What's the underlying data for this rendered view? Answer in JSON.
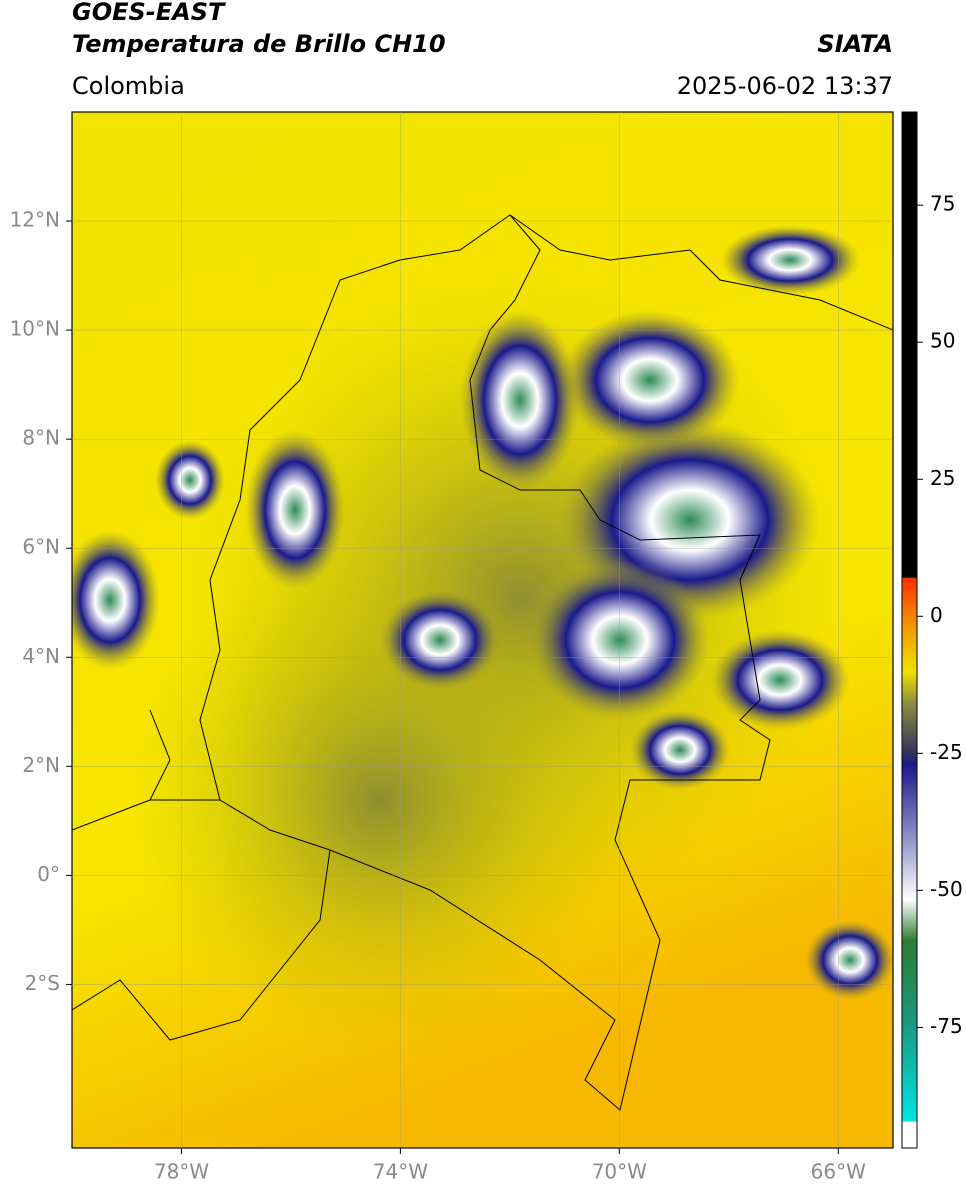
{
  "header": {
    "title": "GOES-EAST",
    "subtitle": "Temperatura de Brillo CH10",
    "source": "SIATA",
    "region": "Colombia",
    "timestamp": "2025-06-02 13:37"
  },
  "map": {
    "lonlim": [
      -80,
      -65
    ],
    "latlim": [
      -5,
      14
    ],
    "lonticks": [
      {
        "value": -78,
        "label": "78°W"
      },
      {
        "value": -74,
        "label": "74°W"
      },
      {
        "value": -70,
        "label": "70°W"
      },
      {
        "value": -66,
        "label": "66°W"
      }
    ],
    "latticks": [
      {
        "value": 12,
        "label": "12°N"
      },
      {
        "value": 10,
        "label": "10°N"
      },
      {
        "value": 8,
        "label": "8°N"
      },
      {
        "value": 6,
        "label": "6°N"
      },
      {
        "value": 4,
        "label": "4°N"
      },
      {
        "value": 2,
        "label": "2°N"
      },
      {
        "value": 0,
        "label": "0°"
      },
      {
        "value": -2,
        "label": "2°S"
      }
    ],
    "grid": true
  },
  "colorbar": {
    "lim": [
      -97,
      92
    ],
    "ticks": [
      75,
      50,
      25,
      0,
      -25,
      -50,
      -75
    ]
  }
}
